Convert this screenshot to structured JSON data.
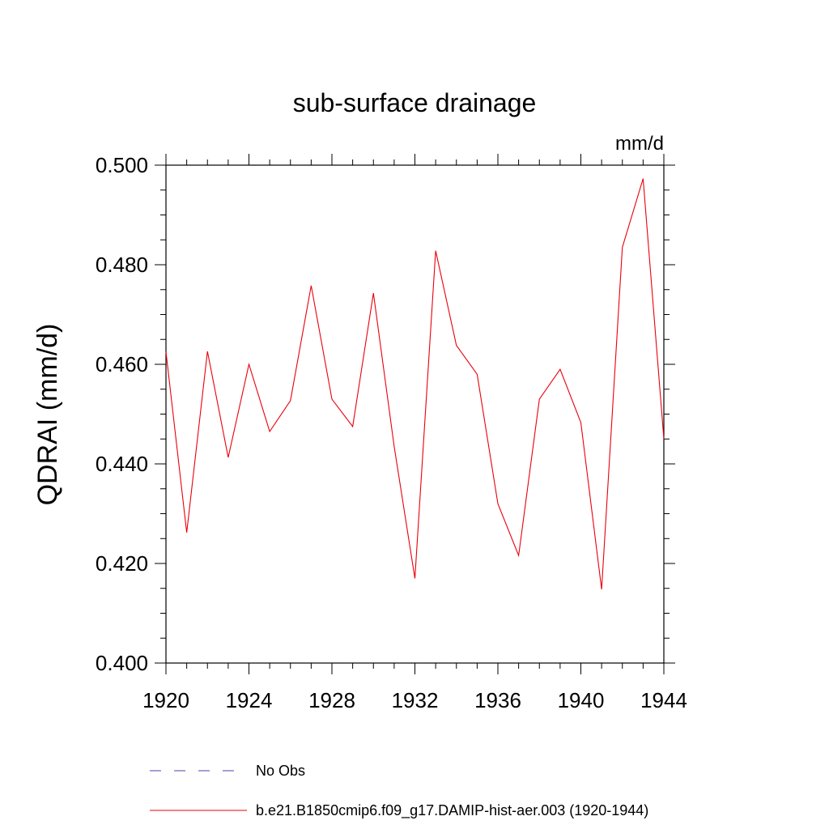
{
  "chart_data": {
    "type": "line",
    "title": "sub-surface drainage",
    "units_label": "mm/d",
    "ylabel": "QDRAI  (mm/d)",
    "xlabel": "",
    "xlim": [
      1920,
      1944
    ],
    "ylim": [
      0.4,
      0.5
    ],
    "x_ticks": [
      1920,
      1924,
      1928,
      1932,
      1936,
      1940,
      1944
    ],
    "x_tick_labels": [
      "1920",
      "1924",
      "1928",
      "1932",
      "1936",
      "1940",
      "1944"
    ],
    "y_ticks": [
      0.4,
      0.42,
      0.44,
      0.46,
      0.48,
      0.5
    ],
    "y_tick_labels": [
      "0.400",
      "0.420",
      "0.440",
      "0.460",
      "0.480",
      "0.500"
    ],
    "series": [
      {
        "name": "b.e21.B1850cmip6.f09_g17.DAMIP-hist-aer.003 (1920-1944)",
        "color": "#e8000b",
        "x": [
          1920,
          1921,
          1922,
          1923,
          1924,
          1925,
          1926,
          1927,
          1928,
          1929,
          1930,
          1931,
          1932,
          1933,
          1934,
          1935,
          1936,
          1937,
          1938,
          1939,
          1940,
          1941,
          1942,
          1943,
          1944
        ],
        "y": [
          0.4625,
          0.4262,
          0.4626,
          0.4413,
          0.46,
          0.4465,
          0.4527,
          0.4758,
          0.453,
          0.4475,
          0.4743,
          0.4435,
          0.417,
          0.4828,
          0.4638,
          0.458,
          0.432,
          0.4216,
          0.453,
          0.459,
          0.4483,
          0.4148,
          0.4835,
          0.4973,
          0.445
        ]
      }
    ],
    "legend": [
      {
        "label": "No Obs",
        "color": "#4444aa",
        "style": "dashed"
      },
      {
        "label": "b.e21.B1850cmip6.f09_g17.DAMIP-hist-aer.003 (1920-1944)",
        "color": "#e8000b",
        "style": "solid"
      }
    ],
    "legend_placement": "bottom",
    "grid": false
  }
}
